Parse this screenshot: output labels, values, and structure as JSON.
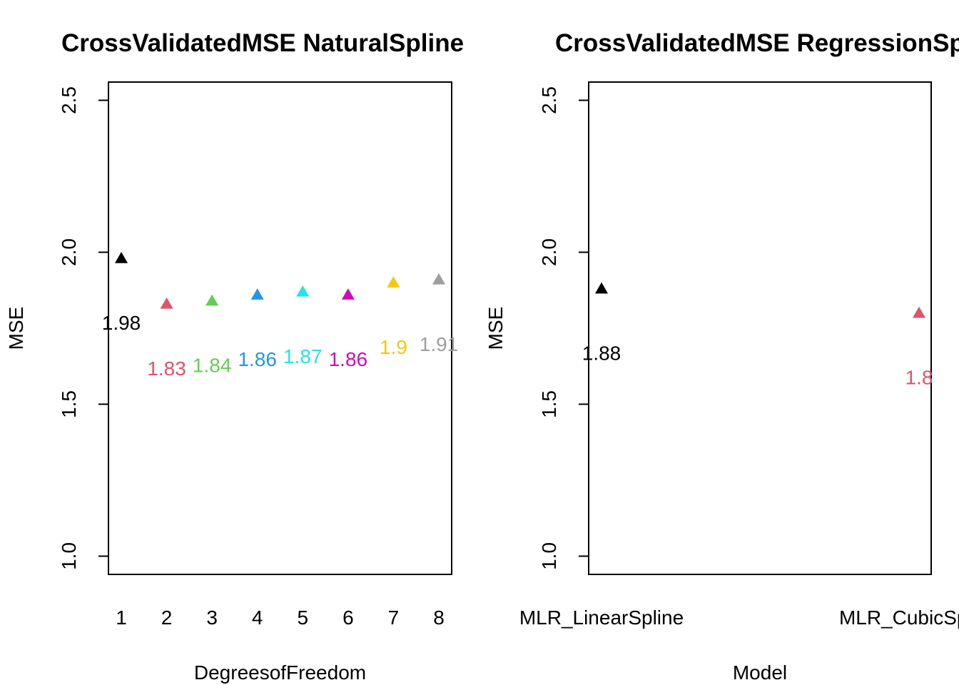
{
  "chart_data": [
    {
      "type": "scatter",
      "title": "CrossValidatedMSE NaturalSpline",
      "xlabel": "DegreesofFreedom",
      "ylabel": "MSE",
      "ylim": [
        0.94,
        2.56
      ],
      "yticks": [
        "1.0",
        "1.5",
        "2.0",
        "2.5"
      ],
      "categories": [
        "1",
        "2",
        "3",
        "4",
        "5",
        "6",
        "7",
        "8"
      ],
      "values": [
        1.98,
        1.83,
        1.84,
        1.86,
        1.87,
        1.86,
        1.9,
        1.91
      ],
      "labels": [
        "1.98",
        "1.83",
        "1.84",
        "1.86",
        "1.87",
        "1.86",
        "1.9",
        "1.91"
      ],
      "colors": [
        "#000000",
        "#DF536B",
        "#61D04F",
        "#2297E6",
        "#28E2E5",
        "#CD0BBC",
        "#F5C710",
        "#9E9E9E"
      ],
      "marker": "triangle",
      "grid": false,
      "legend": "none"
    },
    {
      "type": "scatter",
      "title": "CrossValidatedMSE RegressionSpline",
      "xlabel": "Model",
      "ylabel": "MSE",
      "ylim": [
        0.94,
        2.56
      ],
      "yticks": [
        "1.0",
        "1.5",
        "2.0",
        "2.5"
      ],
      "categories": [
        "MLR_LinearSpline",
        "MLR_CubicSpline"
      ],
      "values": [
        1.88,
        1.8
      ],
      "labels": [
        "1.88",
        "1.8"
      ],
      "colors": [
        "#000000",
        "#DF536B"
      ],
      "marker": "triangle",
      "grid": false,
      "legend": "none"
    }
  ]
}
